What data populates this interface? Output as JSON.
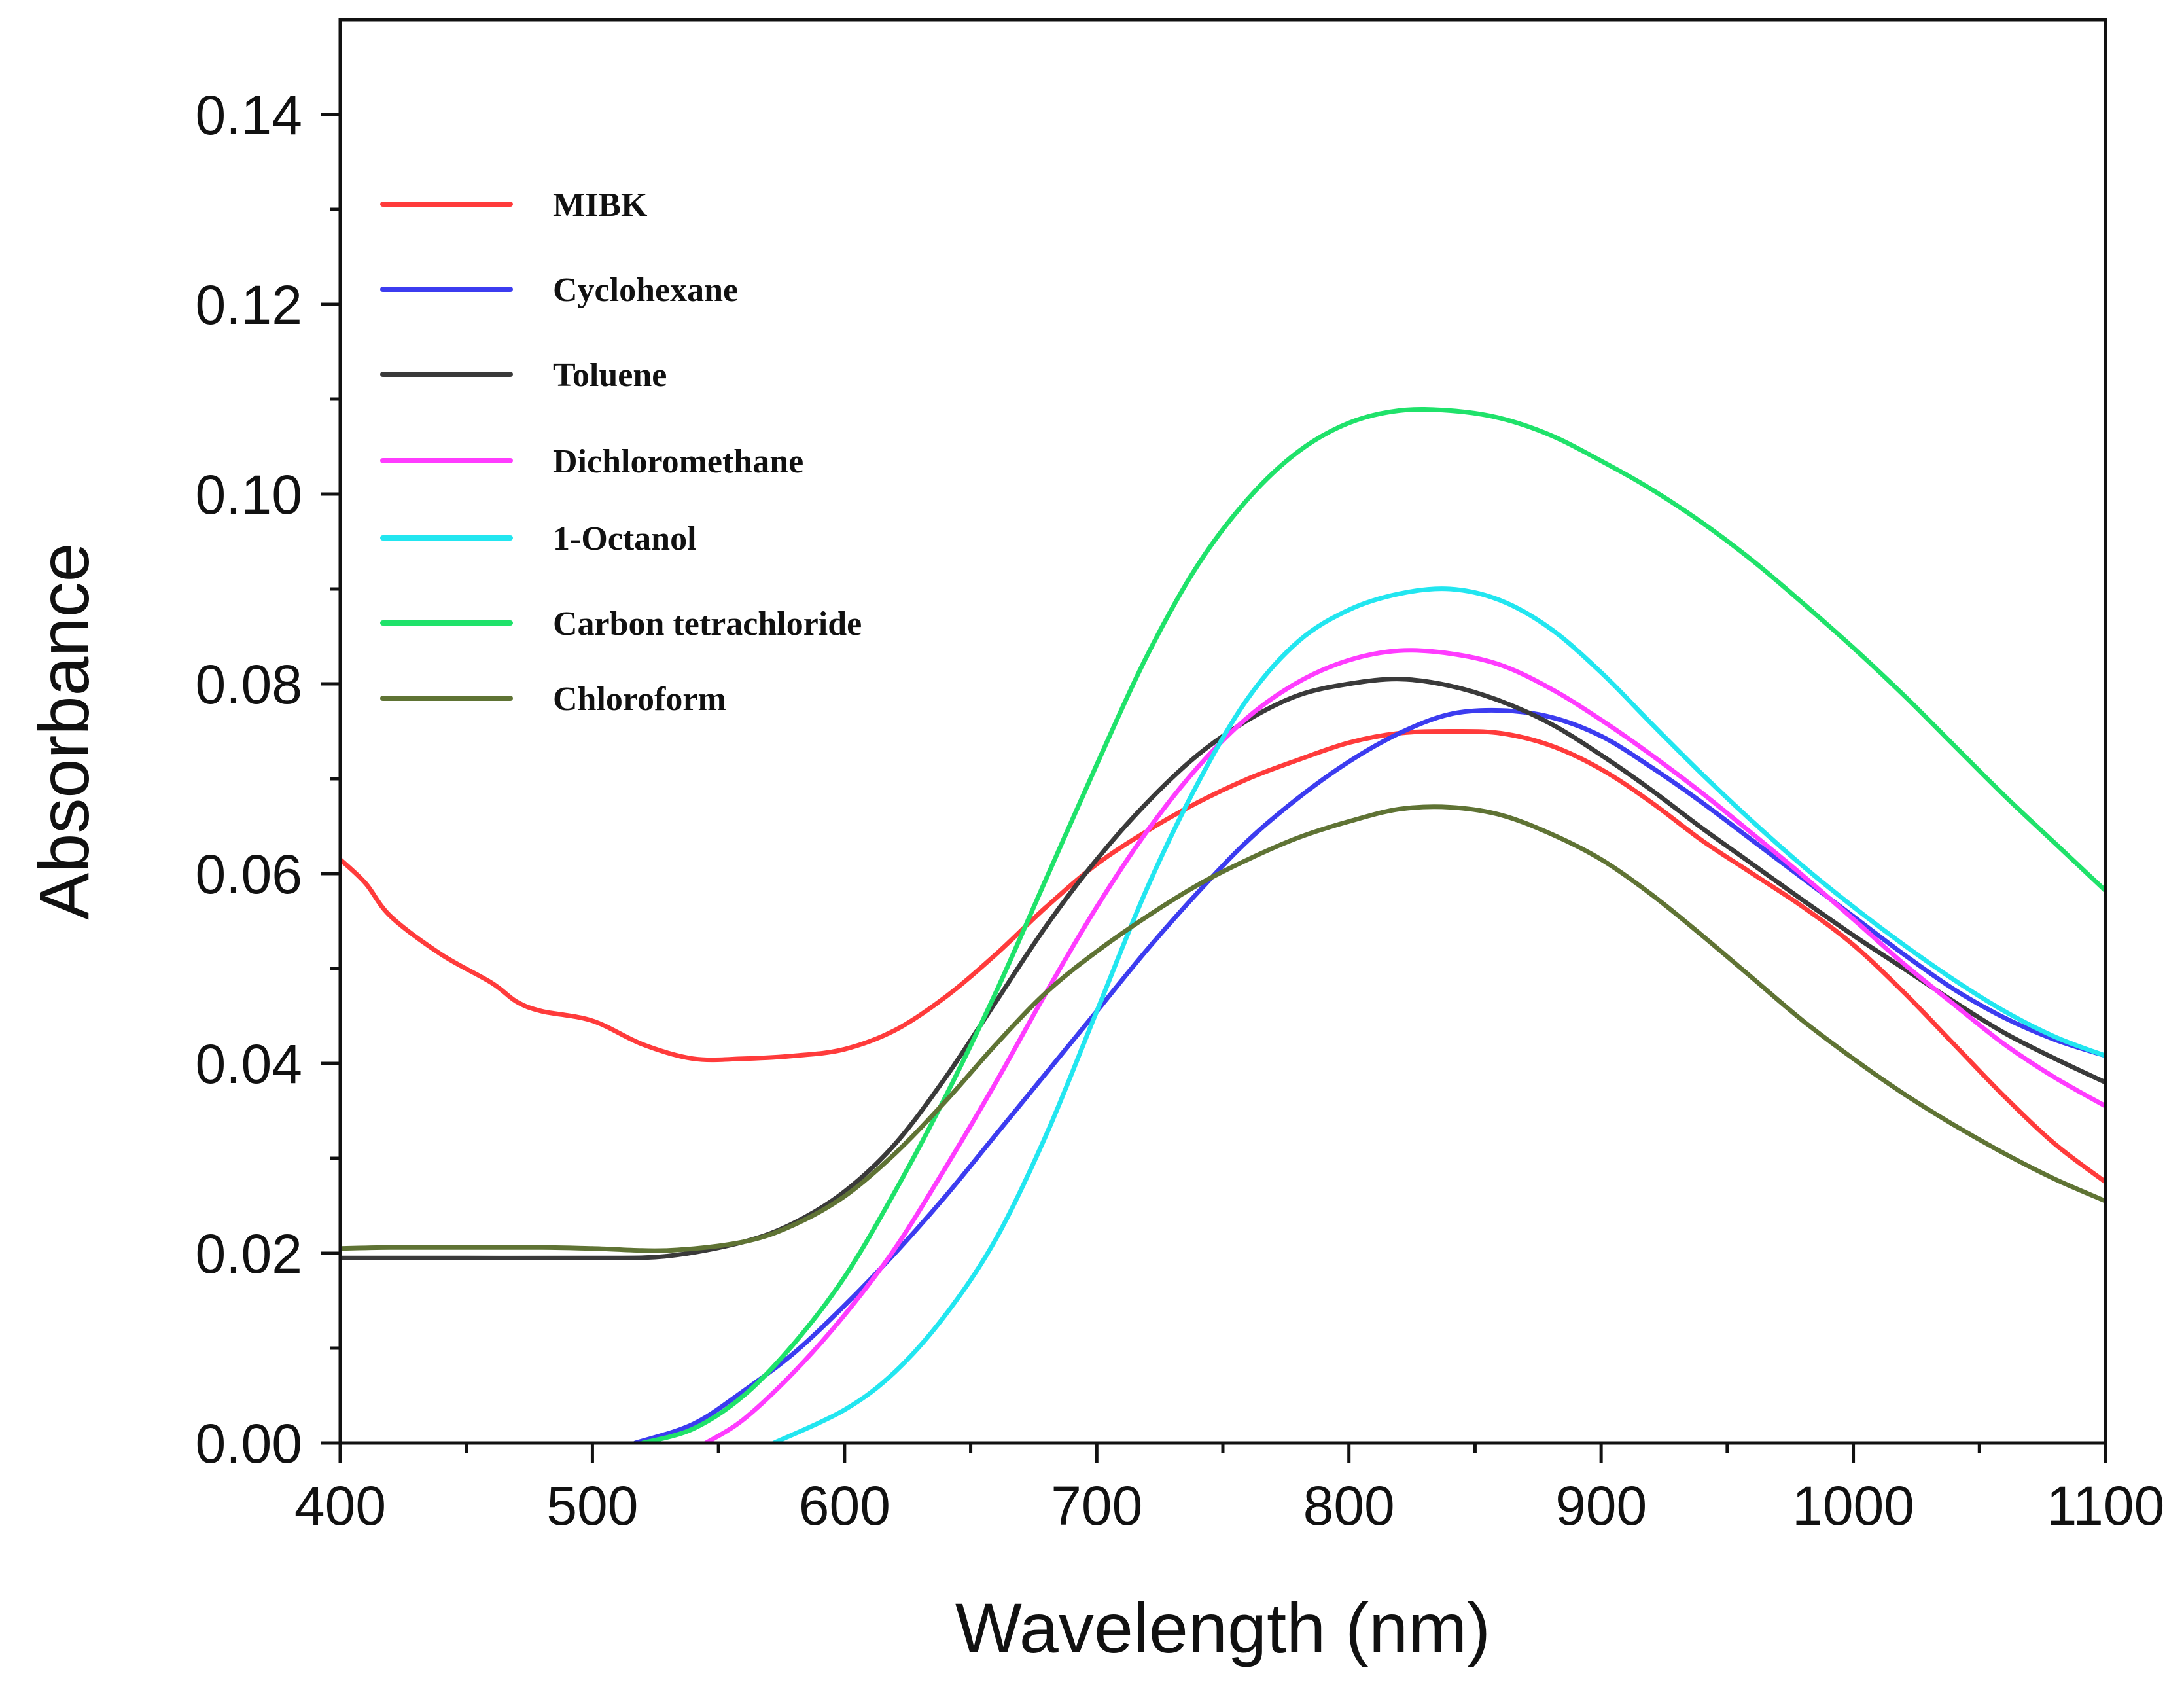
{
  "chart_data": {
    "type": "line",
    "title": "",
    "xlabel": "Wavelength (nm)",
    "ylabel": "Absorbance",
    "xlim": [
      400,
      1100
    ],
    "ylim": [
      0,
      0.15
    ],
    "grid": false,
    "legend_position": "top-left",
    "x_ticks": [
      400,
      500,
      600,
      700,
      800,
      900,
      1000,
      1100
    ],
    "x_tick_labels": [
      "400",
      "500",
      "600",
      "700",
      "800",
      "900",
      "1000",
      "1100"
    ],
    "y_ticks": [
      0,
      0.02,
      0.04,
      0.06,
      0.08,
      0.1,
      0.12,
      0.14
    ],
    "y_tick_labels": [
      "0.00",
      "0.02",
      "0.04",
      "0.06",
      "0.08",
      "0.10",
      "0.12",
      "0.14"
    ],
    "series": [
      {
        "name": "MIBK",
        "color": "#ff3b3b",
        "points": [
          [
            400,
            0.0615
          ],
          [
            410,
            0.059
          ],
          [
            420,
            0.0555
          ],
          [
            440,
            0.0515
          ],
          [
            460,
            0.0485
          ],
          [
            470,
            0.0465
          ],
          [
            480,
            0.0455
          ],
          [
            500,
            0.0445
          ],
          [
            520,
            0.042
          ],
          [
            540,
            0.0405
          ],
          [
            560,
            0.0405
          ],
          [
            580,
            0.0408
          ],
          [
            600,
            0.0415
          ],
          [
            620,
            0.0435
          ],
          [
            640,
            0.047
          ],
          [
            660,
            0.0515
          ],
          [
            680,
            0.0565
          ],
          [
            700,
            0.061
          ],
          [
            720,
            0.0645
          ],
          [
            740,
            0.0675
          ],
          [
            760,
            0.07
          ],
          [
            780,
            0.072
          ],
          [
            800,
            0.0738
          ],
          [
            820,
            0.0748
          ],
          [
            840,
            0.075
          ],
          [
            860,
            0.0748
          ],
          [
            880,
            0.0735
          ],
          [
            900,
            0.071
          ],
          [
            920,
            0.0675
          ],
          [
            940,
            0.0635
          ],
          [
            960,
            0.06
          ],
          [
            980,
            0.0565
          ],
          [
            1000,
            0.0525
          ],
          [
            1020,
            0.0475
          ],
          [
            1040,
            0.042
          ],
          [
            1060,
            0.0365
          ],
          [
            1080,
            0.0315
          ],
          [
            1100,
            0.0275
          ]
        ]
      },
      {
        "name": "Cyclohexane",
        "color": "#3c3cf0",
        "points": [
          [
            517,
            0.0
          ],
          [
            540,
            0.002
          ],
          [
            560,
            0.0055
          ],
          [
            580,
            0.0095
          ],
          [
            600,
            0.0145
          ],
          [
            620,
            0.02
          ],
          [
            640,
            0.026
          ],
          [
            660,
            0.0325
          ],
          [
            680,
            0.039
          ],
          [
            700,
            0.0455
          ],
          [
            720,
            0.052
          ],
          [
            740,
            0.058
          ],
          [
            760,
            0.0635
          ],
          [
            780,
            0.068
          ],
          [
            800,
            0.0718
          ],
          [
            820,
            0.0748
          ],
          [
            840,
            0.0768
          ],
          [
            860,
            0.0772
          ],
          [
            880,
            0.0765
          ],
          [
            900,
            0.0745
          ],
          [
            920,
            0.0712
          ],
          [
            940,
            0.0675
          ],
          [
            960,
            0.0635
          ],
          [
            980,
            0.0595
          ],
          [
            1000,
            0.0555
          ],
          [
            1020,
            0.0515
          ],
          [
            1040,
            0.0478
          ],
          [
            1060,
            0.0448
          ],
          [
            1080,
            0.0425
          ],
          [
            1100,
            0.0408
          ]
        ]
      },
      {
        "name": "Toluene",
        "color": "#3a3a3a",
        "points": [
          [
            400,
            0.0195
          ],
          [
            450,
            0.0195
          ],
          [
            500,
            0.0195
          ],
          [
            530,
            0.0197
          ],
          [
            560,
            0.0212
          ],
          [
            580,
            0.0232
          ],
          [
            600,
            0.0265
          ],
          [
            620,
            0.0315
          ],
          [
            640,
            0.0385
          ],
          [
            660,
            0.0465
          ],
          [
            680,
            0.0545
          ],
          [
            700,
            0.0615
          ],
          [
            720,
            0.0675
          ],
          [
            740,
            0.0725
          ],
          [
            760,
            0.0762
          ],
          [
            780,
            0.0788
          ],
          [
            800,
            0.08
          ],
          [
            820,
            0.0805
          ],
          [
            840,
            0.0798
          ],
          [
            860,
            0.0782
          ],
          [
            880,
            0.0758
          ],
          [
            900,
            0.0725
          ],
          [
            920,
            0.0688
          ],
          [
            940,
            0.0648
          ],
          [
            960,
            0.061
          ],
          [
            980,
            0.0572
          ],
          [
            1000,
            0.0535
          ],
          [
            1020,
            0.05
          ],
          [
            1040,
            0.0465
          ],
          [
            1060,
            0.0432
          ],
          [
            1080,
            0.0405
          ],
          [
            1100,
            0.038
          ]
        ]
      },
      {
        "name": "Dichloromethane",
        "color": "#ff3cff",
        "points": [
          [
            545,
            0.0
          ],
          [
            560,
            0.0025
          ],
          [
            580,
            0.0075
          ],
          [
            600,
            0.0135
          ],
          [
            620,
            0.0205
          ],
          [
            640,
            0.029
          ],
          [
            660,
            0.038
          ],
          [
            680,
            0.0475
          ],
          [
            700,
            0.0565
          ],
          [
            720,
            0.0645
          ],
          [
            740,
            0.0712
          ],
          [
            760,
            0.0765
          ],
          [
            780,
            0.0802
          ],
          [
            800,
            0.0825
          ],
          [
            820,
            0.0835
          ],
          [
            840,
            0.0832
          ],
          [
            860,
            0.082
          ],
          [
            880,
            0.0795
          ],
          [
            900,
            0.0762
          ],
          [
            920,
            0.0725
          ],
          [
            940,
            0.0685
          ],
          [
            960,
            0.0642
          ],
          [
            980,
            0.0598
          ],
          [
            1000,
            0.0552
          ],
          [
            1020,
            0.0505
          ],
          [
            1040,
            0.0462
          ],
          [
            1060,
            0.042
          ],
          [
            1080,
            0.0385
          ],
          [
            1100,
            0.0355
          ]
        ]
      },
      {
        "name": "1-Octanol",
        "color": "#22e6f0",
        "points": [
          [
            572,
            0.0
          ],
          [
            600,
            0.0035
          ],
          [
            620,
            0.0075
          ],
          [
            640,
            0.0135
          ],
          [
            660,
            0.0215
          ],
          [
            680,
            0.0325
          ],
          [
            700,
            0.0455
          ],
          [
            720,
            0.0585
          ],
          [
            740,
            0.0695
          ],
          [
            760,
            0.0785
          ],
          [
            780,
            0.0845
          ],
          [
            800,
            0.0878
          ],
          [
            820,
            0.0895
          ],
          [
            840,
            0.09
          ],
          [
            860,
            0.0888
          ],
          [
            880,
            0.0858
          ],
          [
            900,
            0.0812
          ],
          [
            920,
            0.0758
          ],
          [
            940,
            0.0705
          ],
          [
            960,
            0.0655
          ],
          [
            980,
            0.0608
          ],
          [
            1000,
            0.0565
          ],
          [
            1020,
            0.0525
          ],
          [
            1040,
            0.0488
          ],
          [
            1060,
            0.0455
          ],
          [
            1080,
            0.0428
          ],
          [
            1100,
            0.0408
          ]
        ]
      },
      {
        "name": "Carbon tetrachloride",
        "color": "#1fe26a",
        "points": [
          [
            520,
            0.0
          ],
          [
            540,
            0.0015
          ],
          [
            560,
            0.005
          ],
          [
            580,
            0.0105
          ],
          [
            600,
            0.0175
          ],
          [
            620,
            0.0265
          ],
          [
            640,
            0.0365
          ],
          [
            660,
            0.0475
          ],
          [
            680,
            0.0595
          ],
          [
            700,
            0.0715
          ],
          [
            720,
            0.083
          ],
          [
            740,
            0.0925
          ],
          [
            760,
            0.0995
          ],
          [
            780,
            0.1045
          ],
          [
            800,
            0.1075
          ],
          [
            820,
            0.1088
          ],
          [
            840,
            0.1088
          ],
          [
            860,
            0.108
          ],
          [
            880,
            0.1062
          ],
          [
            900,
            0.1035
          ],
          [
            920,
            0.1005
          ],
          [
            940,
            0.097
          ],
          [
            960,
            0.093
          ],
          [
            980,
            0.0885
          ],
          [
            1000,
            0.0838
          ],
          [
            1020,
            0.0788
          ],
          [
            1040,
            0.0735
          ],
          [
            1060,
            0.0682
          ],
          [
            1080,
            0.0632
          ],
          [
            1100,
            0.0582
          ]
        ]
      },
      {
        "name": "Chloroform",
        "color": "#5f7334",
        "points": [
          [
            400,
            0.0205
          ],
          [
            420,
            0.0206
          ],
          [
            450,
            0.0206
          ],
          [
            480,
            0.0206
          ],
          [
            500,
            0.0205
          ],
          [
            530,
            0.0203
          ],
          [
            560,
            0.0212
          ],
          [
            580,
            0.023
          ],
          [
            600,
            0.026
          ],
          [
            620,
            0.0305
          ],
          [
            640,
            0.036
          ],
          [
            660,
            0.042
          ],
          [
            680,
            0.0475
          ],
          [
            700,
            0.0518
          ],
          [
            720,
            0.0555
          ],
          [
            740,
            0.0588
          ],
          [
            760,
            0.0615
          ],
          [
            780,
            0.0638
          ],
          [
            800,
            0.0655
          ],
          [
            820,
            0.0668
          ],
          [
            840,
            0.067
          ],
          [
            860,
            0.0662
          ],
          [
            880,
            0.0642
          ],
          [
            900,
            0.0615
          ],
          [
            920,
            0.0578
          ],
          [
            940,
            0.0535
          ],
          [
            960,
            0.049
          ],
          [
            980,
            0.0445
          ],
          [
            1000,
            0.0405
          ],
          [
            1020,
            0.0368
          ],
          [
            1040,
            0.0335
          ],
          [
            1060,
            0.0305
          ],
          [
            1080,
            0.0278
          ],
          [
            1100,
            0.0255
          ]
        ]
      }
    ]
  }
}
